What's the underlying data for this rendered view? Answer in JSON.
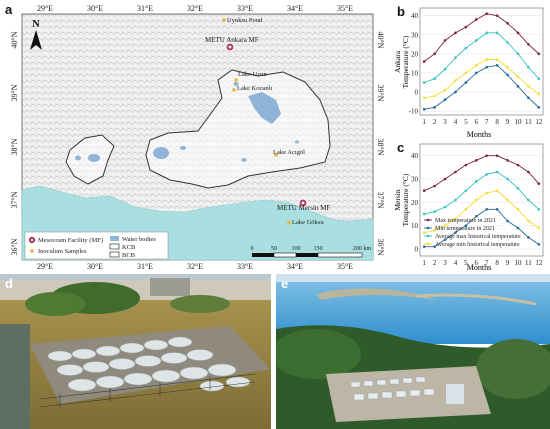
{
  "panels": {
    "a": "a",
    "b": "b",
    "c": "c",
    "d": "d",
    "e": "e"
  },
  "map": {
    "north": "N",
    "lon_ticks_top": [
      "29°E",
      "30°E",
      "31°E",
      "32°E",
      "33°E",
      "34°E",
      "35°E"
    ],
    "lon_ticks_bottom": [
      "29°E",
      "30°E",
      "31°E",
      "32°E",
      "33°E",
      "34°E",
      "35°E"
    ],
    "lat_ticks_left": [
      "40°N",
      "39°N",
      "38°N",
      "37°N",
      "36°N"
    ],
    "lat_ticks_right": [
      "40°N",
      "39°N",
      "38°N",
      "37°N",
      "36°N"
    ],
    "places": {
      "uyuksu": "Uyuksu Pond",
      "ankara": "METU Ankara MF",
      "uzun": "Lake Uzun",
      "kozanli": "Lake Kozanlı",
      "acigol": "Lake Acıgöl",
      "mersin": "METU Mersin MF",
      "goksu": "Lake Göksu"
    },
    "legend": {
      "mf": "Mesocosm Facility (MF)",
      "inoc": "Inoculum Samples",
      "water": "Water bodies",
      "kcb": "KCB",
      "bcb": "BCB"
    },
    "scale": {
      "labels": [
        "0",
        "50",
        "100",
        "150",
        "200 km"
      ]
    },
    "colors": {
      "sea": "#a9dfe0",
      "water": "#8fb4d8",
      "mf": "#b0386a",
      "inoc": "#e8b33a"
    }
  },
  "charts": {
    "b": {
      "ylabel_line1": "Ankara",
      "ylabel_line2": "Temperature (°C)",
      "xlabel": "Months",
      "yticks": [
        "40",
        "30",
        "20",
        "10",
        "0",
        "-10"
      ]
    },
    "c": {
      "ylabel_line1": "Mersin",
      "ylabel_line2": "Temperature (°C)",
      "xlabel": "Months",
      "yticks": [
        "40",
        "30",
        "20",
        "10",
        "0"
      ]
    },
    "months": [
      "1",
      "2",
      "3",
      "4",
      "5",
      "6",
      "7",
      "8",
      "9",
      "10",
      "11",
      "12"
    ],
    "legend": [
      "Max temperature in 2021",
      "Min temperature in 2021",
      "Average max historical temperature",
      "Average min historical temperature"
    ],
    "colors": [
      "#7a1f48",
      "#2a6a9a",
      "#38c4c0",
      "#f2dd3a"
    ]
  },
  "chart_data": [
    {
      "type": "line",
      "x": [
        1,
        2,
        3,
        4,
        5,
        6,
        7,
        8,
        9,
        10,
        11,
        12
      ],
      "xlabel": "Months",
      "ylabel": "Ankara Temperature (°C)",
      "ylim": [
        -12,
        44
      ],
      "series": [
        {
          "name": "Max temperature in 2021",
          "values": [
            16,
            20,
            27,
            31,
            34,
            38,
            41,
            40,
            36,
            31,
            25,
            20
          ]
        },
        {
          "name": "Min temperature in 2021",
          "values": [
            -9,
            -8,
            -4,
            0,
            5,
            10,
            13,
            14,
            9,
            3,
            -3,
            -8
          ]
        },
        {
          "name": "Average max historical temperature",
          "values": [
            5,
            7,
            12,
            18,
            23,
            27,
            31,
            31,
            26,
            20,
            13,
            7
          ]
        },
        {
          "name": "Average min historical temperature",
          "values": [
            -3,
            -2,
            1,
            6,
            10,
            14,
            17,
            17,
            13,
            8,
            3,
            -1
          ]
        }
      ]
    },
    {
      "type": "line",
      "x": [
        1,
        2,
        3,
        4,
        5,
        6,
        7,
        8,
        9,
        10,
        11,
        12
      ],
      "xlabel": "Months",
      "ylabel": "Mersin Temperature (°C)",
      "ylim": [
        -3,
        45
      ],
      "series": [
        {
          "name": "Max temperature in 2021",
          "values": [
            25,
            27,
            30,
            33,
            36,
            38,
            40,
            40,
            38,
            36,
            33,
            28
          ]
        },
        {
          "name": "Min temperature in 2021",
          "values": [
            1,
            1,
            4,
            7,
            10,
            14,
            17,
            17,
            12,
            9,
            5,
            2
          ]
        },
        {
          "name": "Average max historical temperature",
          "values": [
            15,
            16,
            18,
            21,
            25,
            29,
            32,
            33,
            30,
            26,
            21,
            17
          ]
        },
        {
          "name": "Average min historical temperature",
          "values": [
            7,
            8,
            10,
            13,
            17,
            21,
            24,
            25,
            21,
            17,
            12,
            9
          ]
        }
      ]
    }
  ]
}
